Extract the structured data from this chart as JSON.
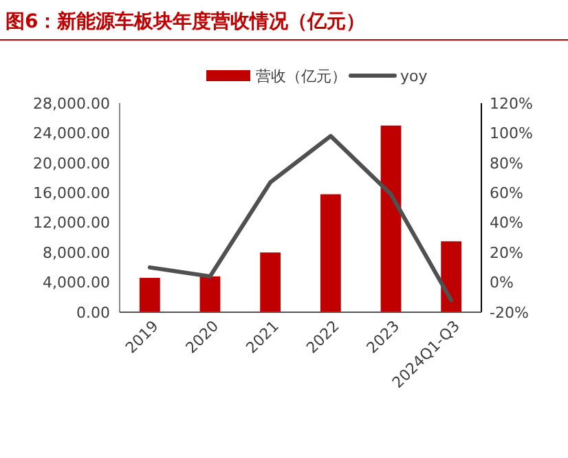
{
  "chart_data": {
    "type": "bar",
    "title": "图6：新能源车板块年度营收情况（亿元）",
    "categories": [
      "2019",
      "2020",
      "2021",
      "2022",
      "2023",
      "2024Q1-Q3"
    ],
    "series": [
      {
        "name": "营收（亿元）",
        "color": "#c00000",
        "values": [
          4600,
          4800,
          8000,
          15800,
          25000,
          9500
        ]
      },
      {
        "name": "yoy",
        "type": "line",
        "axis": "y2",
        "color": "#505050",
        "values": [
          10,
          4,
          67,
          98,
          59,
          -12
        ]
      }
    ],
    "ylim": [
      0,
      28000
    ],
    "yticks": [
      {
        "value": 0,
        "label": "0.00"
      },
      {
        "value": 4000,
        "label": "4,000.00"
      },
      {
        "value": 8000,
        "label": "8,000.00"
      },
      {
        "value": 12000,
        "label": "12,000.00"
      },
      {
        "value": 16000,
        "label": "16,000.00"
      },
      {
        "value": 20000,
        "label": "20,000.00"
      },
      {
        "value": 24000,
        "label": "24,000.00"
      },
      {
        "value": 28000,
        "label": "28,000.00"
      }
    ],
    "y2lim": [
      -20,
      120
    ],
    "y2ticks": [
      {
        "value": -20,
        "label": "-20%"
      },
      {
        "value": 0,
        "label": "0%"
      },
      {
        "value": 20,
        "label": "20%"
      },
      {
        "value": 40,
        "label": "40%"
      },
      {
        "value": 60,
        "label": "60%"
      },
      {
        "value": 80,
        "label": "80%"
      },
      {
        "value": 100,
        "label": "100%"
      },
      {
        "value": 120,
        "label": "120%"
      }
    ],
    "legend": "top",
    "grid": false,
    "marker": "none"
  }
}
